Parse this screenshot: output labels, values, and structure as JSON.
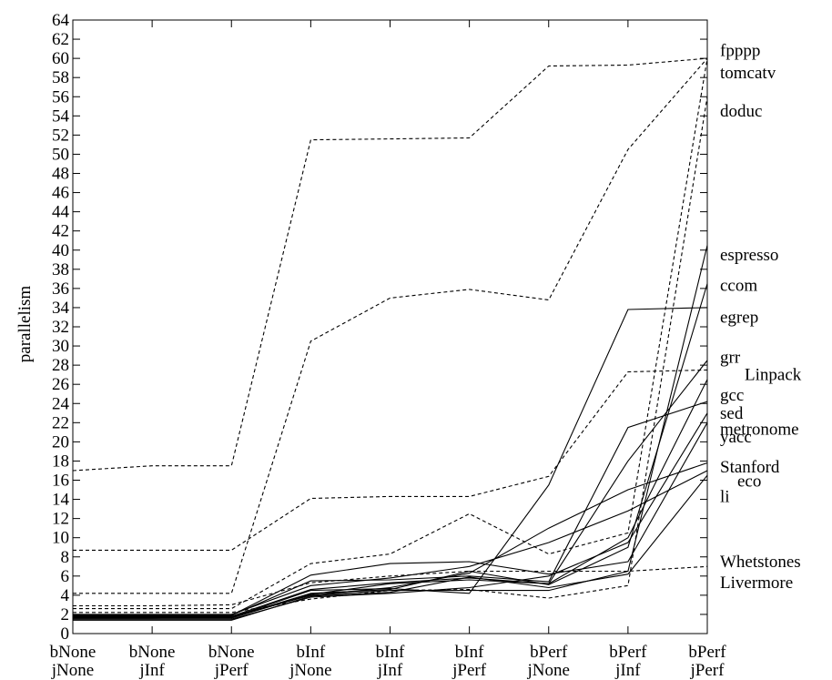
{
  "chart_data": {
    "type": "line",
    "title": "",
    "xlabel": "",
    "ylabel": "parallelism",
    "ylim": [
      0,
      64
    ],
    "ytick_step": 2,
    "grid": false,
    "legend": "right-edge labels",
    "categories": [
      {
        "top": "bNone",
        "bottom": "jNone"
      },
      {
        "top": "bNone",
        "bottom": "jInf"
      },
      {
        "top": "bNone",
        "bottom": "jPerf"
      },
      {
        "top": "bInf",
        "bottom": "jNone"
      },
      {
        "top": "bInf",
        "bottom": "jInf"
      },
      {
        "top": "bInf",
        "bottom": "jPerf"
      },
      {
        "top": "bPerf",
        "bottom": "jNone"
      },
      {
        "top": "bPerf",
        "bottom": "jInf"
      },
      {
        "top": "bPerf",
        "bottom": "jPerf"
      }
    ],
    "series": [
      {
        "name": "fpppp",
        "style": "dashed",
        "values": [
          2.6,
          2.6,
          2.6,
          7.3,
          8.3,
          12.5,
          8.3,
          10.5,
          60.0
        ]
      },
      {
        "name": "tomcatv",
        "style": "dashed",
        "values": [
          17.0,
          17.5,
          17.5,
          51.5,
          51.6,
          51.7,
          59.2,
          59.3,
          60.0
        ]
      },
      {
        "name": "doduc",
        "style": "dashed",
        "values": [
          2.2,
          2.2,
          2.2,
          3.6,
          4.5,
          4.6,
          3.7,
          5.0,
          56.0
        ]
      },
      {
        "name": "espresso",
        "style": "solid",
        "values": [
          1.7,
          1.7,
          1.8,
          4.0,
          4.5,
          4.5,
          4.5,
          6.5,
          40.5
        ]
      },
      {
        "name": "ccom",
        "style": "solid",
        "values": [
          1.6,
          1.6,
          1.7,
          4.2,
          4.6,
          6.5,
          5.1,
          9.0,
          36.5
        ]
      },
      {
        "name": "egrep",
        "style": "solid",
        "values": [
          1.6,
          1.6,
          1.7,
          4.5,
          4.7,
          4.2,
          15.5,
          33.8,
          34.0
        ]
      },
      {
        "name": "grr",
        "style": "solid",
        "values": [
          1.8,
          1.8,
          1.8,
          4.6,
          5.3,
          5.8,
          5.2,
          18.0,
          28.5
        ]
      },
      {
        "name": "Linpack",
        "style": "dashed",
        "values": [
          8.7,
          8.7,
          8.7,
          14.1,
          14.3,
          14.3,
          16.4,
          27.3,
          27.5
        ]
      },
      {
        "name": "gcc",
        "style": "solid",
        "values": [
          1.6,
          1.6,
          1.6,
          4.1,
          5.2,
          5.6,
          5.2,
          10.0,
          26.5
        ]
      },
      {
        "name": "sed",
        "style": "solid",
        "values": [
          1.9,
          1.9,
          1.9,
          5.5,
          5.6,
          6.0,
          5.4,
          21.5,
          24.2
        ]
      },
      {
        "name": "metronome",
        "style": "solid",
        "values": [
          1.5,
          1.5,
          1.5,
          3.8,
          4.2,
          4.8,
          6.0,
          9.5,
          23.0
        ]
      },
      {
        "name": "yacc",
        "style": "solid",
        "values": [
          1.8,
          1.8,
          1.9,
          6.1,
          7.3,
          7.5,
          6.2,
          7.5,
          22.0
        ]
      },
      {
        "name": "Stanford",
        "style": "dashed",
        "values": [
          4.2,
          4.2,
          4.2,
          30.5,
          35.0,
          35.9,
          34.8,
          50.5,
          60.0
        ]
      },
      {
        "name": "eco",
        "style": "solid",
        "values": [
          1.7,
          1.7,
          1.7,
          4.0,
          4.8,
          6.3,
          11.0,
          15.0,
          17.8
        ]
      },
      {
        "name": "li",
        "style": "solid",
        "values": [
          1.4,
          1.4,
          1.4,
          3.9,
          4.3,
          5.9,
          4.8,
          6.2,
          16.5
        ]
      },
      {
        "name": "Whetstones",
        "style": "dashed",
        "values": [
          2.9,
          2.9,
          3.0,
          5.3,
          6.0,
          6.5,
          6.5,
          6.5,
          7.0
        ]
      },
      {
        "name": "Livermore",
        "style": "solid",
        "values": [
          2.0,
          2.0,
          2.0,
          5.0,
          5.8,
          7.0,
          9.5,
          12.8,
          17.0
        ]
      }
    ],
    "right_labels": [
      {
        "text": "fpppp",
        "y": 60.8
      },
      {
        "text": "tomcatv",
        "y": 58.5
      },
      {
        "text": "doduc",
        "y": 54.5
      },
      {
        "text": "espresso",
        "y": 39.5
      },
      {
        "text": "ccom",
        "y": 36.3
      },
      {
        "text": "egrep",
        "y": 33.0
      },
      {
        "text": "grr",
        "y": 28.8
      },
      {
        "text": "Linpack",
        "y": 27.0
      },
      {
        "text": "gcc",
        "y": 24.9
      },
      {
        "text": "sed",
        "y": 23.0
      },
      {
        "text": "metronome",
        "y": 21.3
      },
      {
        "text": "yacc",
        "y": 20.5
      },
      {
        "text": "Stanford",
        "y": 17.4
      },
      {
        "text": "eco",
        "y": 15.9
      },
      {
        "text": "li",
        "y": 14.3
      },
      {
        "text": "Whetstones",
        "y": 7.5
      },
      {
        "text": "Livermore",
        "y": 5.3
      }
    ]
  }
}
